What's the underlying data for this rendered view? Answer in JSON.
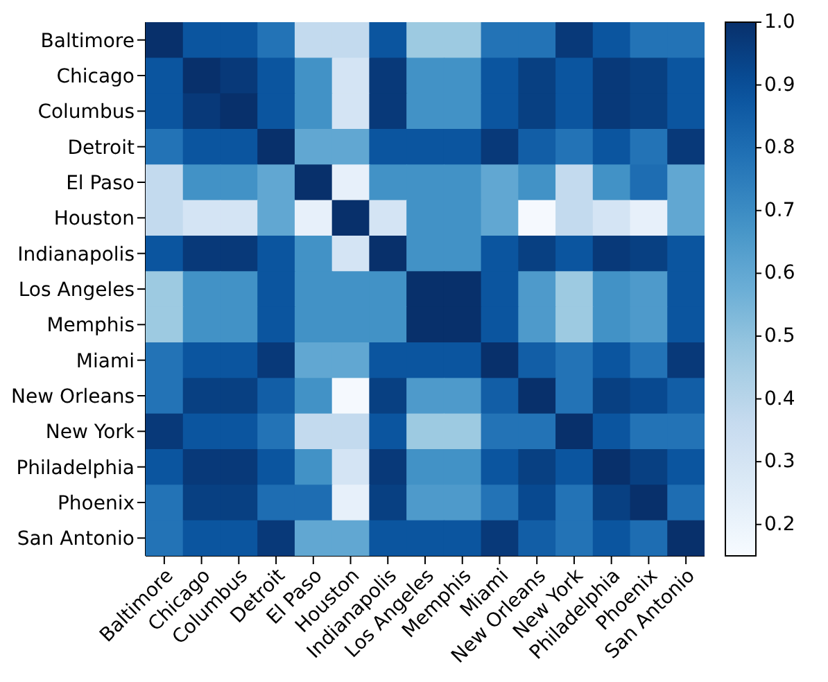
{
  "chart_data": {
    "type": "heatmap",
    "categories": [
      "Baltimore",
      "Chicago",
      "Columbus",
      "Detroit",
      "El Paso",
      "Houston",
      "Indianapolis",
      "Los Angeles",
      "Memphis",
      "Miami",
      "New Orleans",
      "New York",
      "Philadelphia",
      "Phoenix",
      "San Antonio"
    ],
    "y_categories": [
      "Baltimore",
      "Chicago",
      "Columbus",
      "Detroit",
      "El Paso",
      "Houston",
      "Indianapolis",
      "Los Angeles",
      "Memphis",
      "Miami",
      "New Orleans",
      "New York",
      "Philadelphia",
      "Phoenix",
      "San Antonio"
    ],
    "cells": [
      [
        1.0,
        0.88,
        0.88,
        0.78,
        0.37,
        0.37,
        0.88,
        0.47,
        0.47,
        0.78,
        0.78,
        0.97,
        0.88,
        0.78,
        0.78
      ],
      [
        0.88,
        1.0,
        0.97,
        0.88,
        0.68,
        0.3,
        0.97,
        0.68,
        0.68,
        0.88,
        0.95,
        0.88,
        0.97,
        0.95,
        0.88
      ],
      [
        0.88,
        0.97,
        1.0,
        0.88,
        0.68,
        0.3,
        0.97,
        0.68,
        0.68,
        0.88,
        0.95,
        0.88,
        0.97,
        0.95,
        0.88
      ],
      [
        0.78,
        0.88,
        0.88,
        1.0,
        0.6,
        0.6,
        0.88,
        0.88,
        0.88,
        0.97,
        0.85,
        0.78,
        0.88,
        0.78,
        0.97
      ],
      [
        0.37,
        0.68,
        0.68,
        0.6,
        1.0,
        0.22,
        0.68,
        0.68,
        0.68,
        0.6,
        0.68,
        0.37,
        0.68,
        0.8,
        0.6
      ],
      [
        0.37,
        0.3,
        0.3,
        0.6,
        0.22,
        1.0,
        0.3,
        0.68,
        0.68,
        0.6,
        0.16,
        0.37,
        0.3,
        0.22,
        0.6
      ],
      [
        0.88,
        0.97,
        0.97,
        0.88,
        0.68,
        0.3,
        1.0,
        0.68,
        0.68,
        0.88,
        0.95,
        0.88,
        0.97,
        0.95,
        0.88
      ],
      [
        0.47,
        0.68,
        0.68,
        0.88,
        0.68,
        0.68,
        0.68,
        1.0,
        1.0,
        0.88,
        0.65,
        0.47,
        0.68,
        0.65,
        0.88
      ],
      [
        0.47,
        0.68,
        0.68,
        0.88,
        0.68,
        0.68,
        0.68,
        1.0,
        1.0,
        0.88,
        0.65,
        0.47,
        0.68,
        0.65,
        0.88
      ],
      [
        0.78,
        0.88,
        0.88,
        0.97,
        0.6,
        0.6,
        0.88,
        0.88,
        0.88,
        1.0,
        0.85,
        0.78,
        0.88,
        0.78,
        0.97
      ],
      [
        0.78,
        0.95,
        0.95,
        0.85,
        0.68,
        0.16,
        0.95,
        0.65,
        0.65,
        0.85,
        1.0,
        0.78,
        0.95,
        0.92,
        0.85
      ],
      [
        0.97,
        0.88,
        0.88,
        0.78,
        0.37,
        0.37,
        0.88,
        0.47,
        0.47,
        0.78,
        0.78,
        1.0,
        0.88,
        0.78,
        0.78
      ],
      [
        0.88,
        0.97,
        0.97,
        0.88,
        0.68,
        0.3,
        0.97,
        0.68,
        0.68,
        0.88,
        0.95,
        0.88,
        1.0,
        0.95,
        0.88
      ],
      [
        0.78,
        0.95,
        0.95,
        0.8,
        0.8,
        0.22,
        0.95,
        0.65,
        0.65,
        0.78,
        0.92,
        0.78,
        0.95,
        1.0,
        0.8
      ],
      [
        0.78,
        0.88,
        0.88,
        0.97,
        0.6,
        0.6,
        0.88,
        0.88,
        0.88,
        0.97,
        0.85,
        0.78,
        0.88,
        0.8,
        1.0
      ]
    ],
    "clim": [
      0.15,
      1.0
    ],
    "cticks": [
      0.2,
      0.3,
      0.4,
      0.5,
      0.6,
      0.7,
      0.8,
      0.9,
      {
        "value": 1.0,
        "label": "1.0"
      }
    ]
  }
}
